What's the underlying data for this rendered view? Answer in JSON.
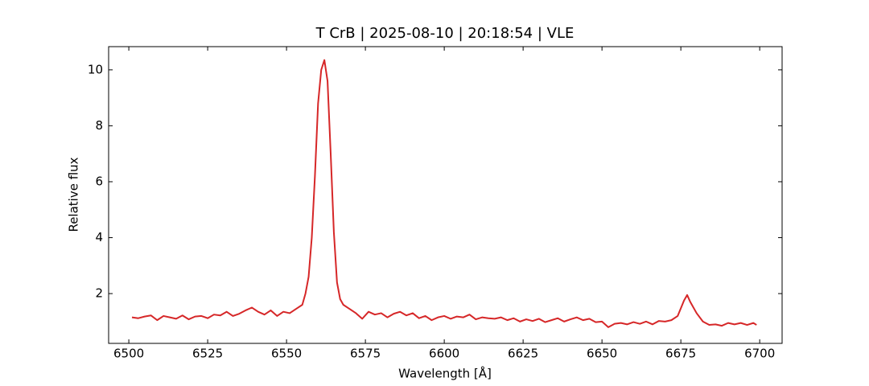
{
  "chart_data": {
    "type": "line",
    "title": "T CrB | 2025-08-10 | 20:18:54 | VLE",
    "xlabel": "Wavelength [Å]",
    "ylabel": "Relative flux",
    "xlim": [
      6493.6,
      6707.1
    ],
    "ylim": [
      0.22,
      10.83
    ],
    "xticks": [
      6500,
      6525,
      6550,
      6575,
      6600,
      6625,
      6650,
      6675,
      6700
    ],
    "yticks": [
      2,
      4,
      6,
      8,
      10
    ],
    "grid": false,
    "x": [
      6501,
      6503,
      6505,
      6507,
      6509,
      6511,
      6513,
      6515,
      6517,
      6519,
      6521,
      6523,
      6525,
      6527,
      6529,
      6531,
      6533,
      6535,
      6537,
      6539,
      6541,
      6543,
      6545,
      6547,
      6549,
      6551,
      6553,
      6555,
      6556,
      6557,
      6558,
      6559,
      6560,
      6561,
      6562,
      6563,
      6564,
      6565,
      6566,
      6567,
      6568,
      6570,
      6572,
      6574,
      6576,
      6578,
      6580,
      6582,
      6584,
      6586,
      6588,
      6590,
      6592,
      6594,
      6596,
      6598,
      6600,
      6602,
      6604,
      6606,
      6608,
      6610,
      6612,
      6614,
      6616,
      6618,
      6620,
      6622,
      6624,
      6626,
      6628,
      6630,
      6632,
      6634,
      6636,
      6638,
      6640,
      6642,
      6644,
      6646,
      6648,
      6650,
      6652,
      6654,
      6656,
      6658,
      6660,
      6662,
      6664,
      6666,
      6668,
      6670,
      6672,
      6674,
      6676,
      6677,
      6678,
      6680,
      6682,
      6684,
      6686,
      6688,
      6690,
      6692,
      6694,
      6696,
      6698,
      6699
    ],
    "series": [
      {
        "name": "T CrB",
        "color": "#d62728",
        "values": [
          1.15,
          1.12,
          1.18,
          1.22,
          1.05,
          1.2,
          1.15,
          1.1,
          1.22,
          1.08,
          1.18,
          1.2,
          1.12,
          1.25,
          1.22,
          1.35,
          1.2,
          1.28,
          1.4,
          1.5,
          1.35,
          1.25,
          1.4,
          1.2,
          1.35,
          1.3,
          1.45,
          1.6,
          2.0,
          2.6,
          4.0,
          6.2,
          8.8,
          10.0,
          10.35,
          9.6,
          7.0,
          4.2,
          2.4,
          1.8,
          1.6,
          1.45,
          1.3,
          1.1,
          1.35,
          1.25,
          1.3,
          1.15,
          1.28,
          1.35,
          1.22,
          1.3,
          1.12,
          1.2,
          1.05,
          1.15,
          1.2,
          1.1,
          1.18,
          1.15,
          1.25,
          1.08,
          1.15,
          1.12,
          1.1,
          1.15,
          1.05,
          1.12,
          1.0,
          1.08,
          1.02,
          1.1,
          0.98,
          1.05,
          1.12,
          1.0,
          1.08,
          1.15,
          1.05,
          1.1,
          0.98,
          1.0,
          0.8,
          0.92,
          0.95,
          0.9,
          0.98,
          0.92,
          1.0,
          0.9,
          1.02,
          1.0,
          1.05,
          1.2,
          1.75,
          1.95,
          1.7,
          1.3,
          1.0,
          0.88,
          0.9,
          0.85,
          0.95,
          0.9,
          0.95,
          0.88,
          0.95,
          0.88
        ]
      }
    ]
  }
}
